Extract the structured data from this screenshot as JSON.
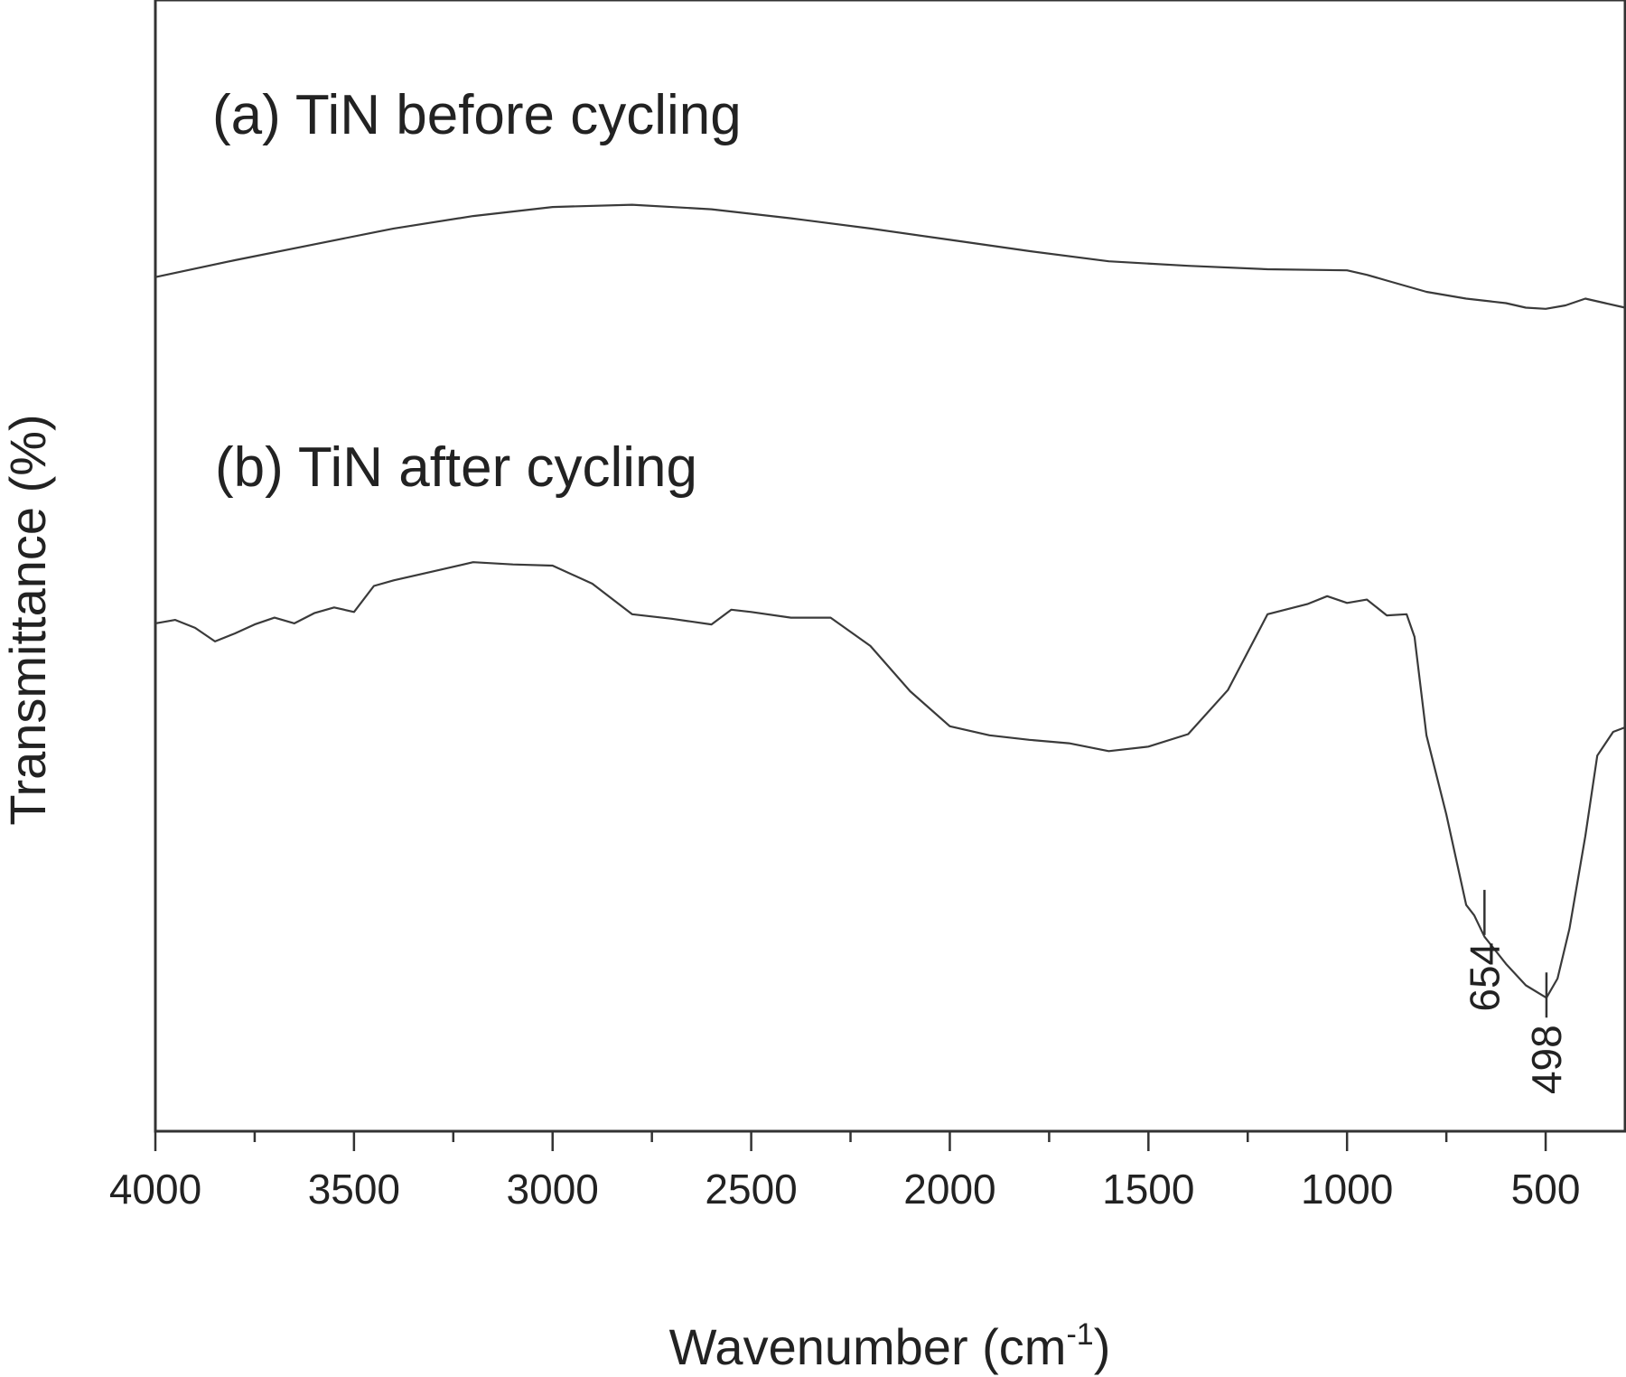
{
  "chart_data": {
    "type": "line",
    "xlabel": "Wavenumber (cm",
    "xlabel_sup": "-1",
    "xlabel_end": ")",
    "ylabel": "Transmittance (%)",
    "xlim": [
      4000,
      300
    ],
    "x_reversed": true,
    "ylim": [
      0,
      100
    ],
    "y_ticks_shown": false,
    "grid": false,
    "legend": "none",
    "x_ticks": [
      4000,
      3500,
      3000,
      2500,
      2000,
      1500,
      1000,
      500
    ],
    "x_tick_labels": [
      "4000",
      "3500",
      "3000",
      "2500",
      "2000",
      "1500",
      "1000",
      "500"
    ],
    "series": [
      {
        "name": "(a) TiN before cycling",
        "x": [
          4000,
          3800,
          3600,
          3400,
          3200,
          3000,
          2800,
          2600,
          2400,
          2200,
          2000,
          1800,
          1600,
          1400,
          1200,
          1000,
          950,
          900,
          800,
          700,
          600,
          550,
          500,
          450,
          400,
          350,
          300
        ],
        "y": [
          75.5,
          77.0,
          78.4,
          79.8,
          80.9,
          81.7,
          81.9,
          81.5,
          80.7,
          79.8,
          78.8,
          77.8,
          76.9,
          76.5,
          76.2,
          76.1,
          75.7,
          75.2,
          74.2,
          73.6,
          73.2,
          72.8,
          72.7,
          73.0,
          73.6,
          73.2,
          72.8
        ]
      },
      {
        "name": "(b) TiN after cycling",
        "x": [
          4000,
          3950,
          3900,
          3850,
          3800,
          3750,
          3700,
          3650,
          3600,
          3550,
          3500,
          3450,
          3400,
          3300,
          3200,
          3100,
          3000,
          2900,
          2800,
          2700,
          2600,
          2550,
          2500,
          2400,
          2300,
          2200,
          2100,
          2000,
          1900,
          1800,
          1700,
          1600,
          1500,
          1400,
          1300,
          1200,
          1100,
          1050,
          1000,
          950,
          900,
          850,
          830,
          800,
          750,
          700,
          680,
          654,
          600,
          550,
          498,
          470,
          440,
          400,
          370,
          330,
          300
        ],
        "y": [
          44.9,
          45.2,
          44.5,
          43.3,
          44.0,
          44.8,
          45.4,
          44.9,
          45.8,
          46.3,
          45.9,
          48.2,
          48.7,
          49.5,
          50.3,
          50.1,
          50.0,
          48.4,
          45.7,
          45.3,
          44.8,
          46.1,
          45.9,
          45.4,
          45.4,
          42.9,
          38.9,
          35.8,
          35.0,
          34.6,
          34.3,
          33.6,
          34.0,
          35.1,
          39.0,
          45.7,
          46.6,
          47.3,
          46.7,
          47.0,
          45.6,
          45.7,
          43.7,
          35.0,
          28.0,
          20.0,
          19.1,
          17.2,
          14.8,
          12.9,
          11.8,
          13.5,
          17.9,
          26.1,
          33.2,
          35.3,
          35.7
        ]
      }
    ],
    "annotations": [
      {
        "label": "654",
        "x": 654,
        "y": 19.1
      },
      {
        "label": "498",
        "x": 498,
        "y": 11.8
      }
    ]
  }
}
